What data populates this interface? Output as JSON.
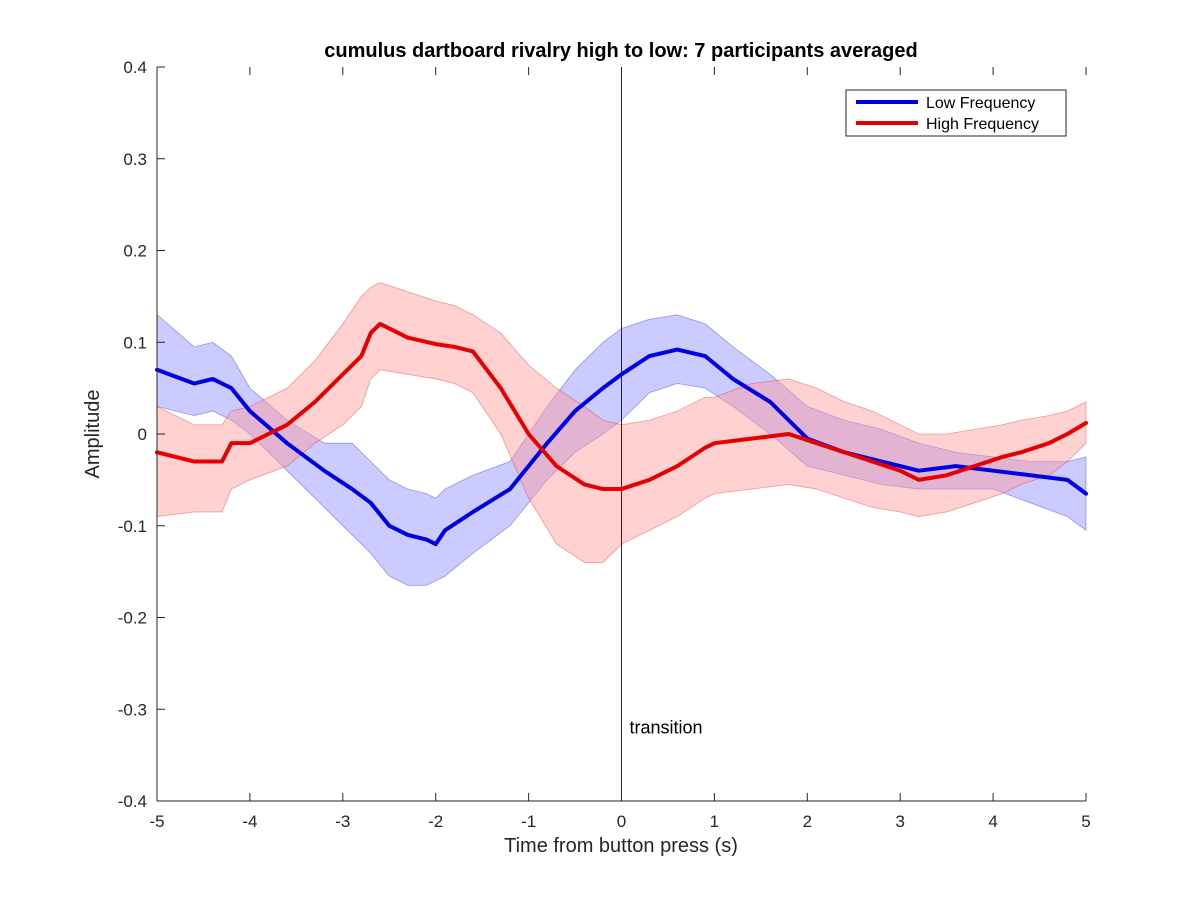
{
  "chart_data": {
    "type": "line",
    "title": "cumulus dartboard rivalry high to low: 7 participants averaged",
    "xlabel": "Time from button press (s)",
    "ylabel": "Amplitude",
    "xlim": [
      -5,
      5
    ],
    "ylim": [
      -0.4,
      0.4
    ],
    "xticks": [
      -5,
      -4,
      -3,
      -2,
      -1,
      0,
      1,
      2,
      3,
      4,
      5
    ],
    "yticks": [
      -0.4,
      -0.3,
      -0.2,
      -0.1,
      0,
      0.1,
      0.2,
      0.3,
      0.4
    ],
    "xtick_labels": [
      "-5",
      "-4",
      "-3",
      "-2",
      "-1",
      "0",
      "1",
      "2",
      "3",
      "4",
      "5"
    ],
    "ytick_labels": [
      "-0.4",
      "-0.3",
      "-0.2",
      "-0.1",
      "0",
      "0.1",
      "0.2",
      "0.3",
      "0.4"
    ],
    "grid": false,
    "legend_position": "top-right",
    "vline": {
      "x": 0,
      "label": "transition",
      "label_y": -0.32
    },
    "series": [
      {
        "name": "Low Frequency",
        "color": "#0000e6",
        "band_color": "#8c8cff",
        "x": [
          -5,
          -4.6,
          -4.4,
          -4.2,
          -4.0,
          -3.6,
          -3.2,
          -2.9,
          -2.7,
          -2.5,
          -2.3,
          -2.1,
          -2.0,
          -1.9,
          -1.6,
          -1.2,
          -0.8,
          -0.5,
          -0.2,
          0.0,
          0.3,
          0.6,
          0.9,
          1.2,
          1.6,
          2.0,
          2.4,
          2.8,
          3.2,
          3.6,
          4.0,
          4.4,
          4.8,
          5.0
        ],
        "y": [
          0.07,
          0.055,
          0.06,
          0.05,
          0.025,
          -0.01,
          -0.04,
          -0.06,
          -0.075,
          -0.1,
          -0.11,
          -0.115,
          -0.12,
          -0.105,
          -0.085,
          -0.06,
          -0.01,
          0.025,
          0.05,
          0.065,
          0.085,
          0.092,
          0.085,
          0.06,
          0.035,
          -0.005,
          -0.02,
          -0.03,
          -0.04,
          -0.035,
          -0.04,
          -0.045,
          -0.05,
          -0.065
        ],
        "upper": [
          0.13,
          0.095,
          0.1,
          0.085,
          0.05,
          0.015,
          -0.01,
          -0.01,
          -0.03,
          -0.05,
          -0.06,
          -0.065,
          -0.07,
          -0.06,
          -0.045,
          -0.03,
          0.03,
          0.07,
          0.1,
          0.115,
          0.125,
          0.13,
          0.12,
          0.095,
          0.065,
          0.03,
          0.015,
          0.005,
          -0.01,
          -0.02,
          -0.025,
          -0.03,
          -0.03,
          -0.025
        ],
        "lower": [
          0.03,
          0.02,
          0.025,
          0.015,
          0.0,
          -0.04,
          -0.08,
          -0.11,
          -0.13,
          -0.155,
          -0.165,
          -0.165,
          -0.16,
          -0.155,
          -0.13,
          -0.1,
          -0.05,
          -0.02,
          0.0,
          0.015,
          0.045,
          0.055,
          0.05,
          0.03,
          0.0,
          -0.035,
          -0.045,
          -0.055,
          -0.06,
          -0.06,
          -0.06,
          -0.075,
          -0.09,
          -0.105
        ]
      },
      {
        "name": "High Frequency",
        "color": "#e60000",
        "band_color": "#ff9999",
        "x": [
          -5,
          -4.6,
          -4.3,
          -4.2,
          -4.0,
          -3.6,
          -3.3,
          -3.0,
          -2.8,
          -2.7,
          -2.6,
          -2.3,
          -2.0,
          -1.8,
          -1.6,
          -1.3,
          -1.0,
          -0.7,
          -0.4,
          -0.2,
          0.0,
          0.3,
          0.6,
          0.9,
          1.0,
          1.4,
          1.8,
          2.1,
          2.4,
          2.7,
          3.0,
          3.2,
          3.5,
          3.8,
          4.1,
          4.3,
          4.6,
          4.8,
          5.0
        ],
        "y": [
          -0.02,
          -0.03,
          -0.03,
          -0.01,
          -0.01,
          0.01,
          0.035,
          0.065,
          0.085,
          0.11,
          0.12,
          0.105,
          0.098,
          0.095,
          0.09,
          0.05,
          0.0,
          -0.035,
          -0.055,
          -0.06,
          -0.06,
          -0.05,
          -0.035,
          -0.015,
          -0.01,
          -0.005,
          0.0,
          -0.01,
          -0.02,
          -0.03,
          -0.04,
          -0.05,
          -0.045,
          -0.035,
          -0.025,
          -0.02,
          -0.01,
          0.0,
          0.012
        ],
        "upper": [
          0.03,
          0.01,
          0.01,
          0.025,
          0.03,
          0.05,
          0.08,
          0.12,
          0.15,
          0.16,
          0.165,
          0.155,
          0.145,
          0.14,
          0.13,
          0.11,
          0.075,
          0.05,
          0.03,
          0.015,
          0.01,
          0.015,
          0.025,
          0.04,
          0.04,
          0.055,
          0.06,
          0.05,
          0.035,
          0.025,
          0.01,
          0.0,
          0.0,
          0.005,
          0.01,
          0.015,
          0.02,
          0.025,
          0.035
        ],
        "lower": [
          -0.09,
          -0.085,
          -0.085,
          -0.06,
          -0.05,
          -0.035,
          -0.01,
          0.01,
          0.03,
          0.06,
          0.07,
          0.065,
          0.06,
          0.055,
          0.045,
          0.0,
          -0.07,
          -0.12,
          -0.14,
          -0.14,
          -0.12,
          -0.105,
          -0.09,
          -0.07,
          -0.065,
          -0.06,
          -0.055,
          -0.06,
          -0.07,
          -0.08,
          -0.085,
          -0.09,
          -0.085,
          -0.075,
          -0.065,
          -0.055,
          -0.045,
          -0.03,
          -0.01
        ]
      }
    ]
  }
}
